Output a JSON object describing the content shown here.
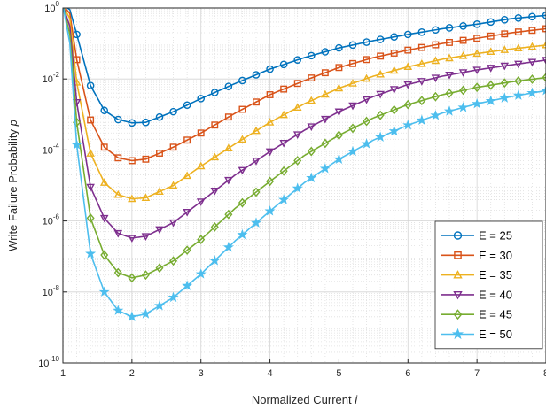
{
  "chart_data": {
    "type": "line",
    "xlabel": "Normalized Current",
    "xlabel_var": "i",
    "ylabel": "Write Failure Probability",
    "ylabel_var": "p",
    "xlim": [
      1,
      8
    ],
    "ylim": [
      1e-10,
      1
    ],
    "yscale": "log",
    "grid": true,
    "legend_position": "bottom-right",
    "x_ticks": [
      {
        "value": 1,
        "label": "1"
      },
      {
        "value": 2,
        "label": "2"
      },
      {
        "value": 3,
        "label": "3"
      },
      {
        "value": 4,
        "label": "4"
      },
      {
        "value": 5,
        "label": "5"
      },
      {
        "value": 6,
        "label": "6"
      },
      {
        "value": 7,
        "label": "7"
      },
      {
        "value": 8,
        "label": "8"
      }
    ],
    "y_ticks": [
      {
        "value": 1e-10,
        "mant": "10",
        "exp": "-10"
      },
      {
        "value": 1e-08,
        "mant": "10",
        "exp": "-8"
      },
      {
        "value": 1e-06,
        "mant": "10",
        "exp": "-6"
      },
      {
        "value": 0.0001,
        "mant": "10",
        "exp": "-4"
      },
      {
        "value": 0.01,
        "mant": "10",
        "exp": "-2"
      },
      {
        "value": 1,
        "mant": "10",
        "exp": "0"
      }
    ],
    "x": [
      1.2,
      1.4,
      1.6,
      1.8,
      2.0,
      2.2,
      2.4,
      2.6,
      2.8,
      3.0,
      3.2,
      3.4,
      3.6,
      3.8,
      4.0,
      4.2,
      4.4,
      4.6,
      4.8,
      5.0,
      5.2,
      5.4,
      5.6,
      5.8,
      6.0,
      6.2,
      6.4,
      6.6,
      6.8,
      7.0,
      7.2,
      7.4,
      7.6,
      7.8,
      8.0
    ],
    "series": [
      {
        "name": "E = 25",
        "color": "#0072BD",
        "marker": "circle",
        "anchors": [
          [
            1.0,
            1.2
          ],
          [
            1.1,
            0.9
          ],
          [
            1.2,
            0.18
          ],
          [
            1.4,
            0.0065
          ],
          [
            1.6,
            0.0013
          ],
          [
            1.8,
            0.00072
          ],
          [
            2.0,
            0.00058
          ],
          [
            2.2,
            0.0006
          ],
          [
            2.6,
            0.0012
          ],
          [
            3.0,
            0.0028
          ],
          [
            3.5,
            0.0075
          ],
          [
            4.0,
            0.019
          ],
          [
            4.5,
            0.04
          ],
          [
            5.0,
            0.075
          ],
          [
            5.5,
            0.12
          ],
          [
            6.0,
            0.18
          ],
          [
            6.5,
            0.26
          ],
          [
            7.0,
            0.35
          ],
          [
            7.5,
            0.5
          ],
          [
            8.0,
            0.62
          ]
        ]
      },
      {
        "name": "E = 30",
        "color": "#D95319",
        "marker": "square",
        "anchors": [
          [
            1.0,
            1.2
          ],
          [
            1.1,
            0.7
          ],
          [
            1.2,
            0.035
          ],
          [
            1.4,
            0.0007
          ],
          [
            1.6,
            0.00012
          ],
          [
            1.8,
            6e-05
          ],
          [
            2.0,
            5e-05
          ],
          [
            2.2,
            5.5e-05
          ],
          [
            2.6,
            0.00012
          ],
          [
            3.0,
            0.0003
          ],
          [
            3.5,
            0.0011
          ],
          [
            4.0,
            0.0036
          ],
          [
            4.5,
            0.009
          ],
          [
            5.0,
            0.021
          ],
          [
            5.5,
            0.04
          ],
          [
            6.0,
            0.065
          ],
          [
            6.5,
            0.1
          ],
          [
            7.0,
            0.14
          ],
          [
            7.5,
            0.2
          ],
          [
            8.0,
            0.26
          ]
        ]
      },
      {
        "name": "E = 35",
        "color": "#EDB120",
        "marker": "triangle",
        "anchors": [
          [
            1.0,
            1.2
          ],
          [
            1.1,
            0.5
          ],
          [
            1.2,
            0.008
          ],
          [
            1.4,
            8e-05
          ],
          [
            1.6,
            1.2e-05
          ],
          [
            1.8,
            5.5e-06
          ],
          [
            2.0,
            4.2e-06
          ],
          [
            2.2,
            4.5e-06
          ],
          [
            2.6,
            1e-05
          ],
          [
            3.0,
            3.5e-05
          ],
          [
            3.5,
            0.00015
          ],
          [
            4.0,
            0.0006
          ],
          [
            4.5,
            0.002
          ],
          [
            5.0,
            0.0055
          ],
          [
            5.5,
            0.012
          ],
          [
            6.0,
            0.022
          ],
          [
            6.5,
            0.036
          ],
          [
            7.0,
            0.052
          ],
          [
            7.5,
            0.07
          ],
          [
            8.0,
            0.09
          ]
        ]
      },
      {
        "name": "E = 40",
        "color": "#7E2F8E",
        "marker": "triangle-down",
        "anchors": [
          [
            1.0,
            1.2
          ],
          [
            1.1,
            0.3
          ],
          [
            1.2,
            0.0022
          ],
          [
            1.4,
            9e-06
          ],
          [
            1.6,
            1.2e-06
          ],
          [
            1.8,
            4.5e-07
          ],
          [
            2.0,
            3.3e-07
          ],
          [
            2.2,
            3.7e-07
          ],
          [
            2.6,
            9e-07
          ],
          [
            3.0,
            3.5e-06
          ],
          [
            3.5,
            2e-05
          ],
          [
            4.0,
            9e-05
          ],
          [
            4.5,
            0.00036
          ],
          [
            5.0,
            0.0012
          ],
          [
            5.5,
            0.0032
          ],
          [
            6.0,
            0.007
          ],
          [
            6.5,
            0.012
          ],
          [
            7.0,
            0.018
          ],
          [
            7.5,
            0.025
          ],
          [
            8.0,
            0.034
          ]
        ]
      },
      {
        "name": "E = 45",
        "color": "#77AC30",
        "marker": "diamond",
        "anchors": [
          [
            1.0,
            1.2
          ],
          [
            1.1,
            0.18
          ],
          [
            1.2,
            0.0006
          ],
          [
            1.4,
            1.2e-06
          ],
          [
            1.6,
            1.1e-07
          ],
          [
            1.8,
            3.5e-08
          ],
          [
            2.0,
            2.5e-08
          ],
          [
            2.2,
            3e-08
          ],
          [
            2.6,
            7.5e-08
          ],
          [
            3.0,
            3e-07
          ],
          [
            3.5,
            2.3e-06
          ],
          [
            4.0,
            1.3e-05
          ],
          [
            4.5,
            7e-05
          ],
          [
            5.0,
            0.00026
          ],
          [
            5.5,
            0.0008
          ],
          [
            6.0,
            0.0019
          ],
          [
            6.5,
            0.0036
          ],
          [
            7.0,
            0.0058
          ],
          [
            7.5,
            0.0083
          ],
          [
            8.0,
            0.011
          ]
        ]
      },
      {
        "name": "E = 50",
        "color": "#4DBEEE",
        "marker": "star",
        "anchors": [
          [
            1.0,
            1.2
          ],
          [
            1.1,
            0.1
          ],
          [
            1.2,
            0.00014
          ],
          [
            1.4,
            1.2e-07
          ],
          [
            1.6,
            1e-08
          ],
          [
            1.8,
            3e-09
          ],
          [
            2.0,
            2e-09
          ],
          [
            2.2,
            2.4e-09
          ],
          [
            2.6,
            7e-09
          ],
          [
            3.0,
            3.2e-08
          ],
          [
            3.5,
            2.8e-07
          ],
          [
            4.0,
            1.9e-06
          ],
          [
            4.5,
            1.2e-05
          ],
          [
            5.0,
            5.5e-05
          ],
          [
            5.5,
            0.00019
          ],
          [
            6.0,
            0.0005
          ],
          [
            6.5,
            0.0011
          ],
          [
            7.0,
            0.002
          ],
          [
            7.5,
            0.0032
          ],
          [
            8.0,
            0.0047
          ]
        ]
      }
    ]
  }
}
